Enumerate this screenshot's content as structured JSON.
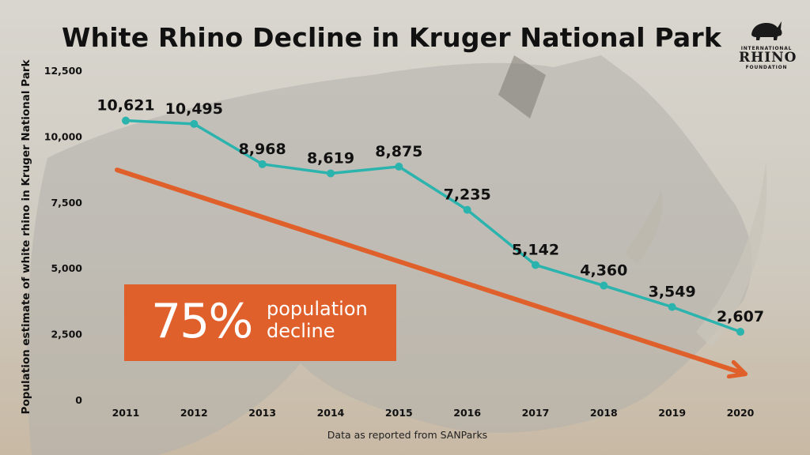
{
  "chart_data": {
    "type": "line",
    "title": "White Rhino Decline in Kruger National Park",
    "xlabel": "",
    "ylabel": "Population estimate of white rhino in Kruger National Park",
    "source_note": "Data as reported from SANParks",
    "categories": [
      "2011",
      "2012",
      "2013",
      "2014",
      "2015",
      "2016",
      "2017",
      "2018",
      "2019",
      "2020"
    ],
    "series": [
      {
        "values": [
          10621,
          10495,
          8968,
          8619,
          8875,
          7235,
          5142,
          4360,
          3549,
          2607
        ],
        "data_labels": [
          "10,621",
          "10,495",
          "8,968",
          "8,619",
          "8,875",
          "7,235",
          "5,142",
          "4,360",
          "3,549",
          "2,607"
        ],
        "color": "#2bb3ad"
      }
    ],
    "yticks": [
      0,
      2500,
      5000,
      7500,
      10000,
      12500
    ],
    "ytick_labels": [
      "0",
      "2,500",
      "5,000",
      "7,500",
      "10,000",
      "12,500"
    ],
    "ylim": [
      0,
      12500
    ],
    "grid": false,
    "trend_arrow": {
      "color": "#e0602c",
      "start_value": 8750,
      "end_value": 1050
    },
    "callout": {
      "big": "75%",
      "line1": "population",
      "line2": "decline",
      "color": "#e0602c"
    }
  },
  "logo": {
    "line1": "INTERNATIONAL",
    "line2": "RHINO",
    "line3": "FOUNDATION"
  }
}
